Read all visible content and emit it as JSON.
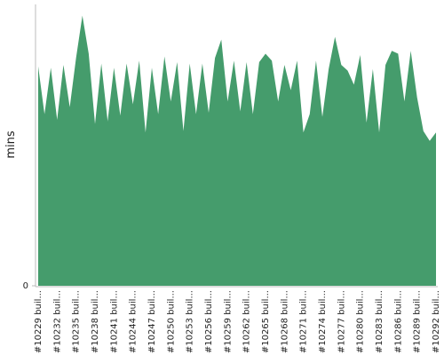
{
  "chart_data": {
    "type": "area",
    "y_label": "mins",
    "color": "#459c6c",
    "categories": [
      "#10229 buil...",
      null,
      null,
      "#10232 buil...",
      null,
      null,
      "#10235 buil...",
      null,
      null,
      "#10238 buil...",
      null,
      null,
      "#10241 buil...",
      null,
      null,
      "#10244 buil...",
      null,
      null,
      "#10247 buil...",
      null,
      null,
      "#10250 buil...",
      null,
      null,
      "#10253 buil...",
      null,
      null,
      "#10256 buil...",
      null,
      null,
      "#10259 buil...",
      null,
      null,
      "#10262 buil...",
      null,
      null,
      "#10265 buil...",
      null,
      null,
      "#10268 buil...",
      null,
      null,
      "#10271 buil...",
      null,
      null,
      "#10274 buil...",
      null,
      null,
      "#10277 buil...",
      null,
      null,
      "#10280 buil...",
      null,
      null,
      "#10283 buil...",
      null,
      null,
      "#10286 buil...",
      null,
      null,
      "#10289 buil...",
      null,
      null,
      "#10292 buil..."
    ],
    "values": [
      15.6,
      12.2,
      15.5,
      11.8,
      15.7,
      12.7,
      16.2,
      19.2,
      16.5,
      11.5,
      15.8,
      11.7,
      15.5,
      12.1,
      15.8,
      12.9,
      16.0,
      10.9,
      15.5,
      12.2,
      16.3,
      13.1,
      15.9,
      11.0,
      15.8,
      12.2,
      15.8,
      12.3,
      16.2,
      17.5,
      13.1,
      16.0,
      12.4,
      15.9,
      12.2,
      15.9,
      16.5,
      16.0,
      13.1,
      15.7,
      13.9,
      16.0,
      10.9,
      12.2,
      16.0,
      12.0,
      15.4,
      17.7,
      15.7,
      15.3,
      14.3,
      16.4,
      11.6,
      15.4,
      10.9,
      15.7,
      16.7,
      16.5,
      13.1,
      16.7,
      13.4,
      11.0,
      10.3,
      10.9
    ],
    "ylim": [
      0,
      20
    ],
    "yticks": [
      0
    ]
  }
}
